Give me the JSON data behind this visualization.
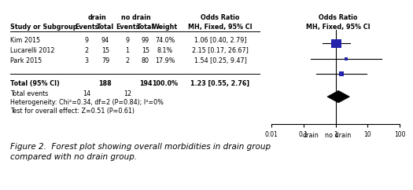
{
  "studies": [
    "Kim 2015",
    "Lucarelli 2012",
    "Park 2015"
  ],
  "drain_events": [
    9,
    2,
    3
  ],
  "drain_total": [
    94,
    15,
    79
  ],
  "nodrain_events": [
    9,
    1,
    2
  ],
  "nodrain_total": [
    99,
    15,
    80
  ],
  "weights": [
    "74.0%",
    "8.1%",
    "17.9%"
  ],
  "or_labels": [
    "1.06 [0.40, 2.79]",
    "2.15 [0.17, 26.67]",
    "1.54 [0.25, 9.47]"
  ],
  "or_values": [
    1.06,
    2.15,
    1.54
  ],
  "or_lower": [
    0.4,
    0.17,
    0.25
  ],
  "or_upper": [
    2.79,
    26.67,
    9.47
  ],
  "total_or": 1.23,
  "total_lower": 0.55,
  "total_upper": 2.76,
  "total_or_label": "1.23 [0.55, 2.76]",
  "total_drain": 188,
  "total_nodrain": 194,
  "total_drain_label": "188",
  "total_nodrain_label": "194",
  "total_events_drain": 14,
  "total_events_nodrain": 12,
  "heterogeneity_text": "Heterogeneity: Chi²=0.34, df=2 (P=0.84); I²=0%",
  "overall_text": "Test for overall effect: Z=0.51 (P=0.61)",
  "box_color": "#2222aa",
  "square_sizes": [
    74.0,
    8.1,
    17.9
  ],
  "fig_caption_line1": "Figure 2.  Forest plot showing overall morbidities in drain group",
  "fig_caption_line2": "compared with no drain group.",
  "xmin": 0.01,
  "xmax": 100,
  "xticks": [
    0.01,
    0.1,
    1,
    10,
    100
  ],
  "xtick_labels": [
    "0.01",
    "0.1",
    "1",
    "10",
    "100"
  ],
  "xlabel_left": "drain",
  "xlabel_right": "no drain"
}
